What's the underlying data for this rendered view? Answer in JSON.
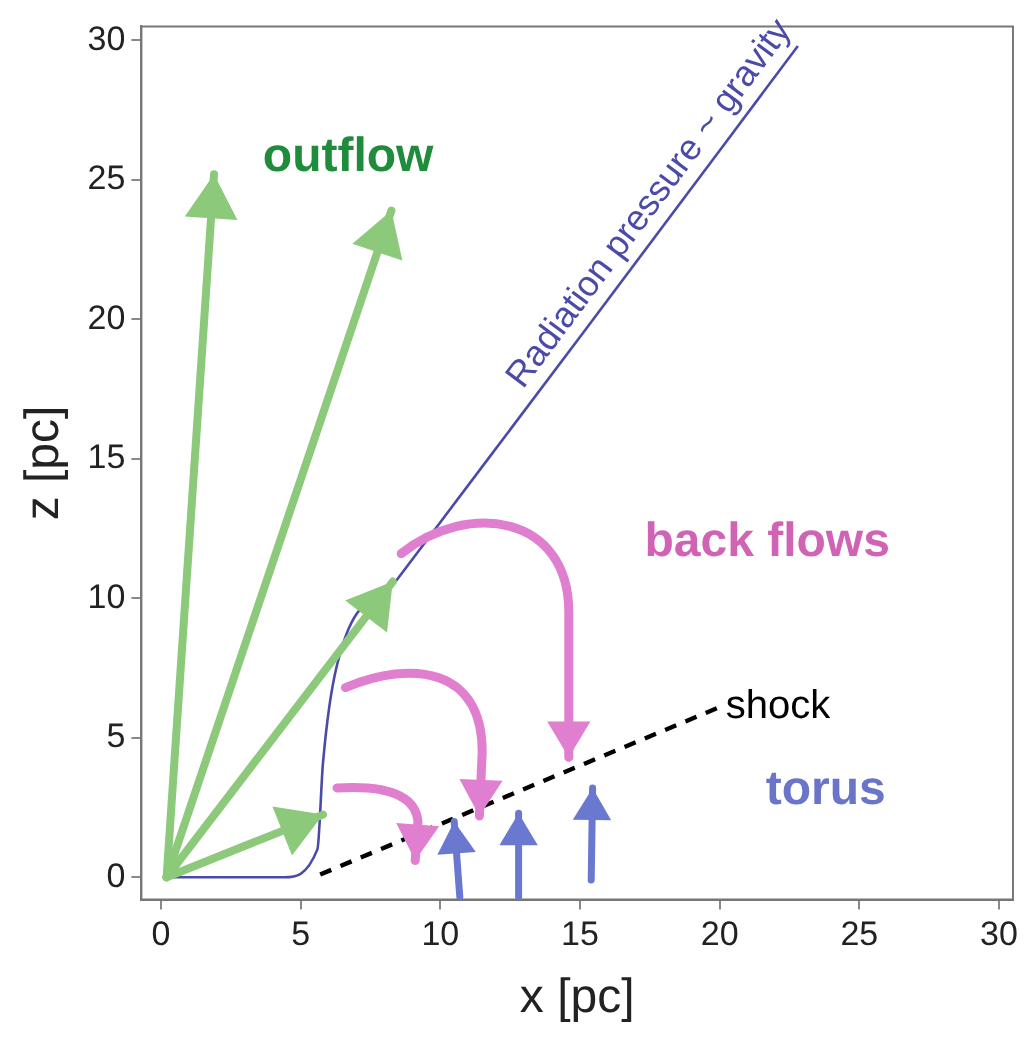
{
  "chart_data": {
    "type": "line",
    "xlabel": "x [pc]",
    "ylabel": "z [pc]",
    "xlim": [
      -0.7,
      30.5
    ],
    "ylim": [
      -0.8,
      30.5
    ],
    "xticks": [
      0,
      5,
      10,
      15,
      20,
      25,
      30
    ],
    "yticks": [
      0,
      5,
      10,
      15,
      20,
      25,
      30
    ],
    "grid": false,
    "legend": false,
    "marker": "none",
    "series": [
      {
        "name": "Radiation pressure ~ gravity",
        "color": "#4a4aa8",
        "x": [
          0.2,
          4.4,
          5.6,
          5.8,
          6.3,
          8.4,
          15.1,
          22.8
        ],
        "values": [
          0,
          0,
          1,
          4.1,
          7.6,
          10.6,
          19.5,
          29.8
        ],
        "line_style": "solid"
      },
      {
        "name": "shock",
        "color": "#000000",
        "x": [
          5.7,
          20
        ],
        "values": [
          0.1,
          6.1
        ],
        "line_style": "dashed"
      }
    ],
    "annotations": [
      "outflow",
      "back flows",
      "torus"
    ]
  }
}
